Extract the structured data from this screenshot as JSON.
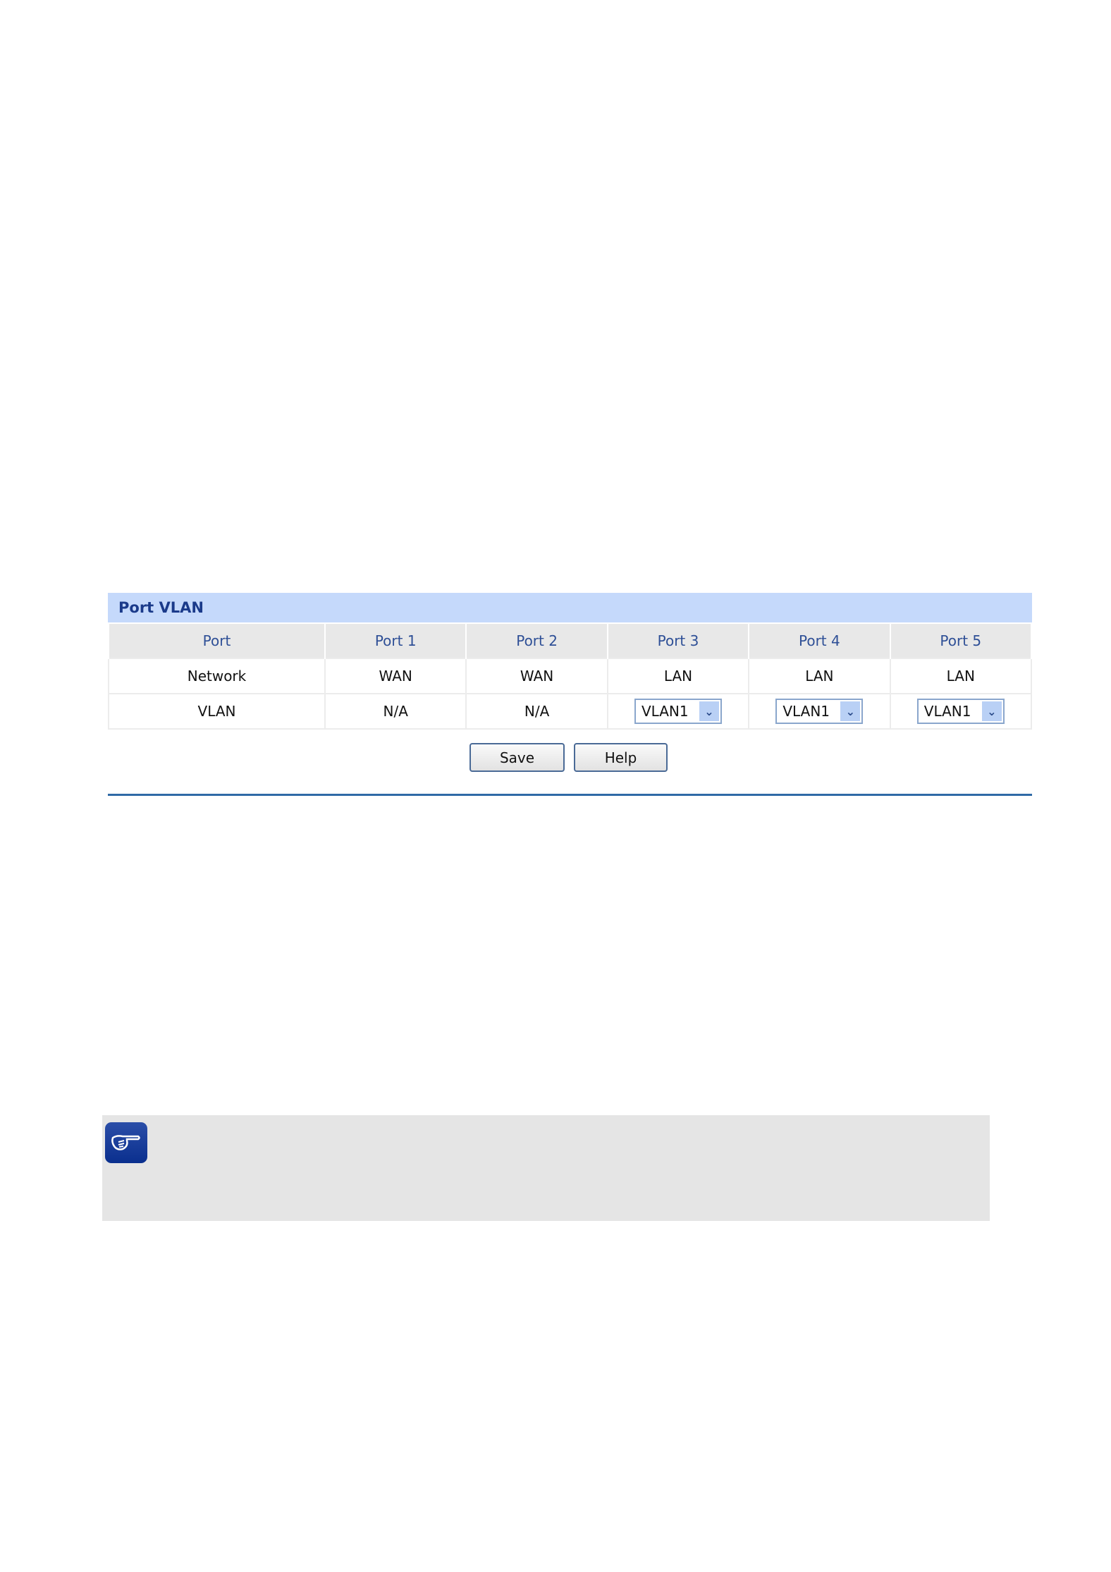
{
  "panel": {
    "title": "Port VLAN",
    "headers": [
      "Port",
      "Port 1",
      "Port 2",
      "Port 3",
      "Port 4",
      "Port 5"
    ],
    "network_row": [
      "Network",
      "WAN",
      "WAN",
      "LAN",
      "LAN",
      "LAN"
    ],
    "vlan_row": {
      "label": "VLAN",
      "port1": "N/A",
      "port2": "N/A",
      "port3": "VLAN1",
      "port4": "VLAN1",
      "port5": "VLAN1"
    }
  },
  "buttons": {
    "save": "Save",
    "help": "Help"
  },
  "note": {
    "icon": "pointing-hand-icon"
  },
  "colors": {
    "title_bg": "#c5d9fb",
    "accent": "#2f6aa6",
    "note_bg": "#e5e5e5"
  }
}
